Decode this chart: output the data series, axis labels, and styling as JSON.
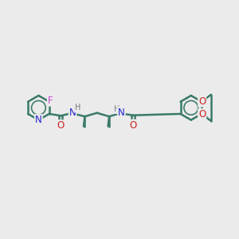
{
  "background_color": "#ebebeb",
  "bond_color": "#3a7a6a",
  "bond_width": 1.8,
  "atom_colors": {
    "N": "#2222cc",
    "O": "#cc2222",
    "F": "#cc44cc",
    "H": "#777777"
  },
  "font_size": 8.5,
  "fig_size": [
    3.0,
    3.0
  ],
  "dpi": 100
}
